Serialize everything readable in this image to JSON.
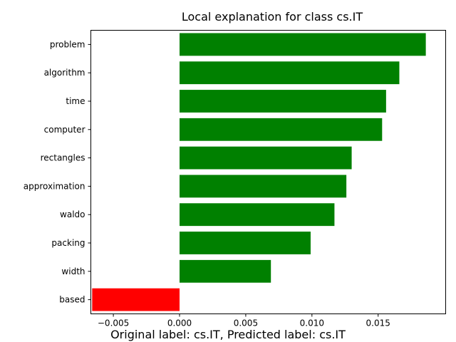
{
  "chart_data": {
    "type": "bar",
    "orientation": "horizontal",
    "title": "Local explanation for class cs.IT",
    "caption": "Original label: cs.IT, Predicted label: cs.IT",
    "xlabel": "",
    "ylabel": "",
    "xlim": [
      -0.0067,
      0.0201
    ],
    "xticks": [
      -0.005,
      0.0,
      0.005,
      0.01,
      0.015
    ],
    "xtick_labels": [
      "−0.005",
      "0.000",
      "0.005",
      "0.010",
      "0.015"
    ],
    "categories": [
      "problem",
      "algorithm",
      "time",
      "computer",
      "rectangles",
      "approximation",
      "waldo",
      "packing",
      "width",
      "based"
    ],
    "values": [
      0.0186,
      0.0166,
      0.0156,
      0.0153,
      0.013,
      0.0126,
      0.0117,
      0.0099,
      0.0069,
      -0.0066
    ],
    "colors": {
      "positive": "#008000",
      "negative": "#ff0000"
    },
    "grid": false
  }
}
